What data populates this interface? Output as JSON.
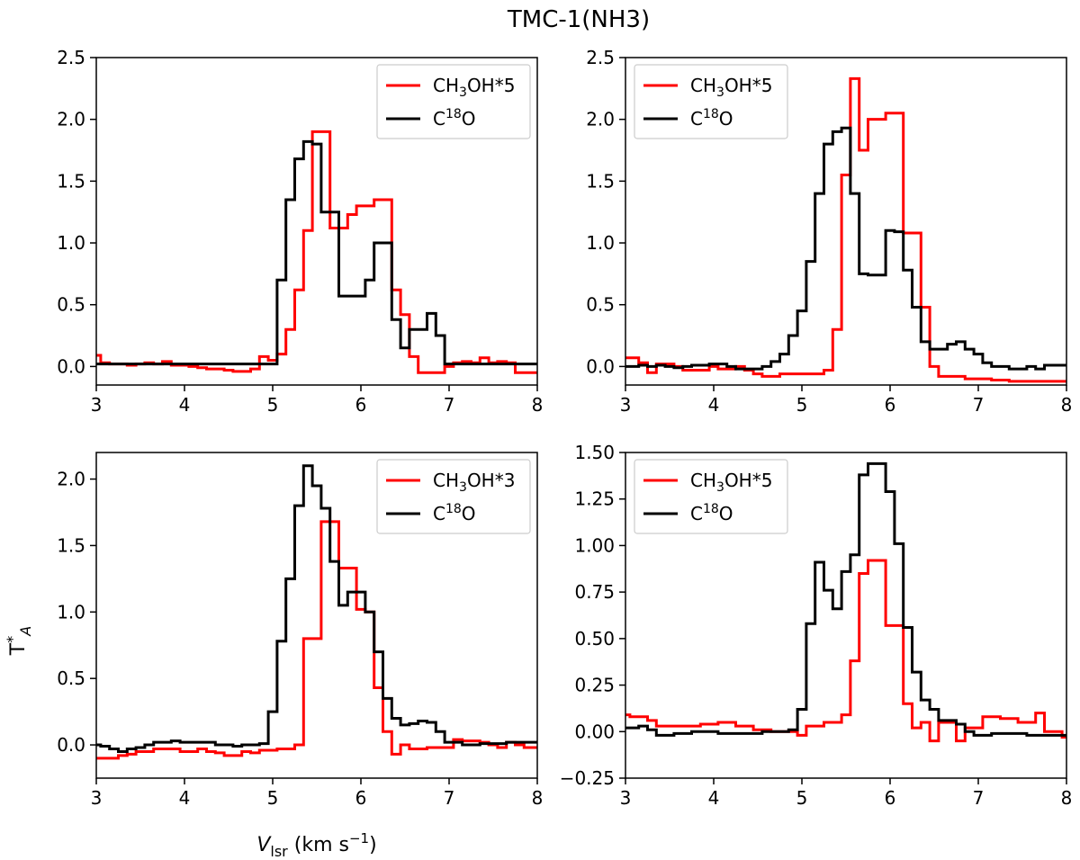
{
  "figure": {
    "title": "TMC-1(NH3)",
    "xlabel": "V",
    "xlabel_sub": "lsr",
    "xlabel_unit": " (km s",
    "xlabel_unit_sup": "−1",
    "xlabel_unit_close": ")",
    "ylabel": "T",
    "ylabel_sup": "*",
    "ylabel_sub": "A"
  },
  "colors": {
    "methanol": "#ff0000",
    "c18o": "#000000"
  },
  "chart_data": [
    {
      "type": "line",
      "drawstyle": "steps-mid",
      "xlim": [
        3,
        8
      ],
      "ylim": [
        -0.15,
        2.5
      ],
      "xticks": [
        "3",
        "4",
        "5",
        "6",
        "7",
        "8"
      ],
      "yticks": [
        "0.0",
        "0.5",
        "1.0",
        "1.5",
        "2.0",
        "2.5"
      ],
      "legend_position": "upper right",
      "series": [
        {
          "name": "CH3OH*5",
          "label_parts": [
            "CH",
            "3",
            "OH*5"
          ],
          "color": "#ff0000",
          "x": [
            3.0,
            3.1,
            3.2,
            3.3,
            3.4,
            3.5,
            3.6,
            3.7,
            3.8,
            3.9,
            4.0,
            4.1,
            4.2,
            4.3,
            4.4,
            4.5,
            4.6,
            4.7,
            4.8,
            4.9,
            5.0,
            5.1,
            5.2,
            5.3,
            5.4,
            5.5,
            5.6,
            5.7,
            5.8,
            5.9,
            6.0,
            6.1,
            6.2,
            6.3,
            6.4,
            6.5,
            6.6,
            6.7,
            6.8,
            6.9,
            7.0,
            7.1,
            7.2,
            7.3,
            7.4,
            7.5,
            7.6,
            7.7,
            7.8,
            7.9,
            8.0
          ],
          "y": [
            0.09,
            0.03,
            0.02,
            0.02,
            0.01,
            0.02,
            0.03,
            0.02,
            0.04,
            0.01,
            0.01,
            0.0,
            -0.01,
            -0.02,
            -0.02,
            -0.03,
            -0.04,
            -0.04,
            -0.02,
            0.08,
            0.05,
            0.1,
            0.3,
            0.62,
            1.1,
            1.9,
            1.9,
            1.12,
            1.12,
            1.23,
            1.3,
            1.3,
            1.35,
            1.35,
            0.62,
            0.42,
            0.08,
            -0.05,
            -0.05,
            -0.05,
            0.0,
            0.03,
            0.04,
            0.03,
            0.07,
            0.03,
            0.04,
            0.03,
            -0.05,
            -0.05,
            -0.05
          ]
        },
        {
          "name": "C18O",
          "label_parts": [
            "C",
            "18",
            "O"
          ],
          "color": "#000000",
          "x": [
            3.0,
            3.1,
            3.2,
            3.3,
            3.4,
            3.5,
            3.6,
            3.7,
            3.8,
            3.9,
            4.0,
            4.1,
            4.2,
            4.3,
            4.4,
            4.5,
            4.6,
            4.7,
            4.8,
            4.9,
            5.0,
            5.1,
            5.2,
            5.3,
            5.4,
            5.5,
            5.6,
            5.7,
            5.8,
            5.9,
            6.0,
            6.1,
            6.2,
            6.3,
            6.4,
            6.5,
            6.6,
            6.7,
            6.8,
            6.9,
            7.0,
            7.1,
            7.2,
            7.3,
            7.4,
            7.5,
            7.6,
            7.7,
            7.8,
            7.9,
            8.0
          ],
          "y": [
            0.02,
            0.02,
            0.02,
            0.02,
            0.02,
            0.02,
            0.02,
            0.02,
            0.02,
            0.02,
            0.02,
            0.02,
            0.02,
            0.02,
            0.02,
            0.02,
            0.02,
            0.02,
            0.02,
            0.02,
            0.02,
            0.7,
            1.35,
            1.68,
            1.82,
            1.8,
            1.25,
            1.25,
            0.57,
            0.57,
            0.57,
            0.7,
            1.0,
            1.0,
            0.38,
            0.15,
            0.3,
            0.3,
            0.43,
            0.25,
            0.02,
            0.02,
            0.02,
            0.02,
            0.02,
            0.02,
            0.02,
            0.02,
            0.02,
            0.02,
            0.02
          ]
        }
      ]
    },
    {
      "type": "line",
      "drawstyle": "steps-mid",
      "xlim": [
        3,
        8
      ],
      "ylim": [
        -0.15,
        2.5
      ],
      "xticks": [
        "3",
        "4",
        "5",
        "6",
        "7",
        "8"
      ],
      "yticks": [
        "0.0",
        "0.5",
        "1.0",
        "1.5",
        "2.0",
        "2.5"
      ],
      "legend_position": "upper left",
      "series": [
        {
          "name": "CH3OH*5",
          "label_parts": [
            "CH",
            "3",
            "OH*5"
          ],
          "color": "#ff0000",
          "x": [
            3.0,
            3.1,
            3.2,
            3.3,
            3.4,
            3.5,
            3.6,
            3.7,
            3.8,
            3.9,
            4.0,
            4.1,
            4.2,
            4.3,
            4.4,
            4.5,
            4.6,
            4.7,
            4.8,
            4.9,
            5.0,
            5.1,
            5.2,
            5.3,
            5.4,
            5.5,
            5.6,
            5.7,
            5.8,
            5.9,
            6.0,
            6.1,
            6.2,
            6.3,
            6.4,
            6.5,
            6.6,
            6.7,
            6.8,
            6.9,
            7.0,
            7.1,
            7.2,
            7.3,
            7.4,
            7.5,
            7.6,
            7.7,
            7.8,
            7.9,
            8.0
          ],
          "y": [
            0.07,
            0.07,
            0.03,
            -0.05,
            0.02,
            0.02,
            0.0,
            -0.03,
            -0.03,
            -0.03,
            0.0,
            -0.02,
            -0.02,
            0.0,
            -0.03,
            -0.06,
            -0.08,
            -0.08,
            -0.06,
            -0.06,
            -0.06,
            -0.06,
            -0.06,
            -0.03,
            0.3,
            1.55,
            2.33,
            1.75,
            2.0,
            2.0,
            2.05,
            2.05,
            1.08,
            1.08,
            0.48,
            0.0,
            -0.08,
            -0.08,
            -0.08,
            -0.1,
            -0.1,
            -0.1,
            -0.11,
            -0.11,
            -0.12,
            -0.12,
            -0.12,
            -0.12,
            -0.12,
            -0.12,
            -0.12
          ]
        },
        {
          "name": "C18O",
          "label_parts": [
            "C",
            "18",
            "O"
          ],
          "color": "#000000",
          "x": [
            3.0,
            3.1,
            3.2,
            3.3,
            3.4,
            3.5,
            3.6,
            3.7,
            3.8,
            3.9,
            4.0,
            4.1,
            4.2,
            4.3,
            4.4,
            4.5,
            4.6,
            4.7,
            4.8,
            4.9,
            5.0,
            5.1,
            5.2,
            5.3,
            5.4,
            5.5,
            5.6,
            5.7,
            5.8,
            5.9,
            6.0,
            6.1,
            6.2,
            6.3,
            6.4,
            6.5,
            6.6,
            6.7,
            6.8,
            6.9,
            7.0,
            7.1,
            7.2,
            7.3,
            7.4,
            7.5,
            7.6,
            7.7,
            7.8,
            7.9,
            8.0
          ],
          "y": [
            0.0,
            0.0,
            0.01,
            0.0,
            0.01,
            0.0,
            -0.01,
            0.0,
            0.01,
            0.01,
            0.02,
            0.02,
            0.0,
            -0.02,
            -0.02,
            -0.02,
            0.0,
            0.04,
            0.1,
            0.25,
            0.45,
            0.85,
            1.4,
            1.8,
            1.9,
            1.93,
            1.4,
            0.75,
            0.74,
            0.74,
            1.1,
            1.09,
            0.78,
            0.48,
            0.2,
            0.14,
            0.14,
            0.18,
            0.2,
            0.14,
            0.1,
            0.03,
            0.0,
            0.0,
            -0.02,
            -0.02,
            0.0,
            -0.02,
            0.01,
            0.01,
            0.01
          ]
        }
      ]
    },
    {
      "type": "line",
      "drawstyle": "steps-mid",
      "xlim": [
        3,
        8
      ],
      "ylim": [
        -0.25,
        2.2
      ],
      "xticks": [
        "3",
        "4",
        "5",
        "6",
        "7",
        "8"
      ],
      "yticks": [
        "0.0",
        "0.5",
        "1.0",
        "1.5",
        "2.0"
      ],
      "legend_position": "upper right",
      "series": [
        {
          "name": "CH3OH*3",
          "label_parts": [
            "CH",
            "3",
            "OH*3"
          ],
          "color": "#ff0000",
          "x": [
            3.0,
            3.1,
            3.2,
            3.3,
            3.4,
            3.5,
            3.6,
            3.7,
            3.8,
            3.9,
            4.0,
            4.1,
            4.2,
            4.3,
            4.4,
            4.5,
            4.6,
            4.7,
            4.8,
            4.9,
            5.0,
            5.1,
            5.2,
            5.3,
            5.4,
            5.5,
            5.6,
            5.7,
            5.8,
            5.9,
            6.0,
            6.1,
            6.2,
            6.3,
            6.4,
            6.5,
            6.6,
            6.7,
            6.8,
            6.9,
            7.0,
            7.1,
            7.2,
            7.3,
            7.4,
            7.5,
            7.6,
            7.7,
            7.8,
            7.9,
            8.0
          ],
          "y": [
            -0.1,
            -0.1,
            -0.1,
            -0.08,
            -0.07,
            -0.05,
            -0.05,
            -0.03,
            -0.03,
            -0.03,
            -0.05,
            -0.05,
            -0.03,
            -0.05,
            -0.06,
            -0.08,
            -0.08,
            -0.05,
            -0.06,
            -0.04,
            -0.04,
            -0.03,
            -0.03,
            0.0,
            0.8,
            0.8,
            1.68,
            1.68,
            1.33,
            1.33,
            1.02,
            1.0,
            0.43,
            0.1,
            -0.07,
            0.0,
            -0.03,
            -0.03,
            -0.02,
            -0.02,
            -0.02,
            0.04,
            0.03,
            0.03,
            0.02,
            0.0,
            -0.02,
            0.02,
            0.0,
            -0.02,
            -0.02
          ]
        },
        {
          "name": "C18O",
          "label_parts": [
            "C",
            "18",
            "O"
          ],
          "color": "#000000",
          "x": [
            3.0,
            3.1,
            3.2,
            3.3,
            3.4,
            3.5,
            3.6,
            3.7,
            3.8,
            3.9,
            4.0,
            4.1,
            4.2,
            4.3,
            4.4,
            4.5,
            4.6,
            4.7,
            4.8,
            4.9,
            5.0,
            5.1,
            5.2,
            5.3,
            5.4,
            5.5,
            5.6,
            5.7,
            5.8,
            5.9,
            6.0,
            6.1,
            6.2,
            6.3,
            6.4,
            6.5,
            6.6,
            6.7,
            6.8,
            6.9,
            7.0,
            7.1,
            7.2,
            7.3,
            7.4,
            7.5,
            7.6,
            7.7,
            7.8,
            7.9,
            8.0
          ],
          "y": [
            0.0,
            -0.01,
            -0.03,
            -0.05,
            -0.03,
            -0.02,
            0.0,
            0.02,
            0.02,
            0.03,
            0.02,
            0.02,
            0.02,
            0.02,
            0.0,
            0.0,
            -0.01,
            0.0,
            0.0,
            0.01,
            0.25,
            0.78,
            1.25,
            1.8,
            2.1,
            1.95,
            1.78,
            1.38,
            1.05,
            1.15,
            1.15,
            1.0,
            0.7,
            0.35,
            0.2,
            0.15,
            0.16,
            0.18,
            0.17,
            0.1,
            0.02,
            0.02,
            0.0,
            0.0,
            0.01,
            0.01,
            0.01,
            0.02,
            0.02,
            0.02,
            0.02
          ]
        }
      ]
    },
    {
      "type": "line",
      "drawstyle": "steps-mid",
      "xlim": [
        3,
        8
      ],
      "ylim": [
        -0.25,
        1.5
      ],
      "xticks": [
        "3",
        "4",
        "5",
        "6",
        "7",
        "8"
      ],
      "yticks": [
        "−0.25",
        "0.00",
        "0.25",
        "0.50",
        "0.75",
        "1.00",
        "1.25",
        "1.50"
      ],
      "legend_position": "upper left",
      "series": [
        {
          "name": "CH3OH*5",
          "label_parts": [
            "CH",
            "3",
            "OH*5"
          ],
          "color": "#ff0000",
          "x": [
            3.0,
            3.1,
            3.2,
            3.3,
            3.4,
            3.5,
            3.6,
            3.7,
            3.8,
            3.9,
            4.0,
            4.1,
            4.2,
            4.3,
            4.4,
            4.5,
            4.6,
            4.7,
            4.8,
            4.9,
            5.0,
            5.1,
            5.2,
            5.3,
            5.4,
            5.5,
            5.6,
            5.7,
            5.8,
            5.9,
            6.0,
            6.1,
            6.2,
            6.3,
            6.4,
            6.5,
            6.6,
            6.7,
            6.8,
            6.9,
            7.0,
            7.1,
            7.2,
            7.3,
            7.4,
            7.5,
            7.6,
            7.7,
            7.8,
            7.9,
            8.0
          ],
          "y": [
            0.09,
            0.08,
            0.08,
            0.06,
            0.03,
            0.03,
            0.03,
            0.03,
            0.03,
            0.04,
            0.04,
            0.05,
            0.05,
            0.03,
            0.03,
            0.01,
            0.01,
            0.0,
            0.0,
            0.0,
            -0.02,
            0.03,
            0.03,
            0.05,
            0.05,
            0.09,
            0.38,
            0.85,
            0.92,
            0.92,
            0.57,
            0.57,
            0.15,
            0.02,
            0.05,
            -0.05,
            0.05,
            0.05,
            -0.05,
            0.02,
            0.02,
            0.08,
            0.08,
            0.07,
            0.07,
            0.05,
            0.05,
            0.1,
            0.0,
            0.0,
            -0.03
          ]
        },
        {
          "name": "C18O",
          "label_parts": [
            "C",
            "18",
            "O"
          ],
          "color": "#000000",
          "x": [
            3.0,
            3.1,
            3.2,
            3.3,
            3.4,
            3.5,
            3.6,
            3.7,
            3.8,
            3.9,
            4.0,
            4.1,
            4.2,
            4.3,
            4.4,
            4.5,
            4.6,
            4.7,
            4.8,
            4.9,
            5.0,
            5.1,
            5.2,
            5.3,
            5.4,
            5.5,
            5.6,
            5.7,
            5.8,
            5.9,
            6.0,
            6.1,
            6.2,
            6.3,
            6.4,
            6.5,
            6.6,
            6.7,
            6.8,
            6.9,
            7.0,
            7.1,
            7.2,
            7.3,
            7.4,
            7.5,
            7.6,
            7.7,
            7.8,
            7.9,
            8.0
          ],
          "y": [
            0.02,
            0.02,
            0.03,
            0.01,
            -0.02,
            -0.02,
            -0.01,
            -0.01,
            0.0,
            0.0,
            0.0,
            -0.01,
            -0.01,
            -0.01,
            -0.01,
            -0.01,
            0.0,
            0.0,
            0.0,
            0.01,
            0.12,
            0.58,
            0.91,
            0.76,
            0.66,
            0.86,
            0.95,
            1.38,
            1.44,
            1.44,
            1.29,
            1.01,
            0.56,
            0.32,
            0.17,
            0.12,
            0.06,
            0.06,
            0.04,
            0.0,
            -0.02,
            -0.02,
            -0.01,
            -0.01,
            -0.01,
            -0.01,
            -0.02,
            -0.02,
            -0.02,
            -0.02,
            -0.02
          ]
        }
      ]
    }
  ]
}
